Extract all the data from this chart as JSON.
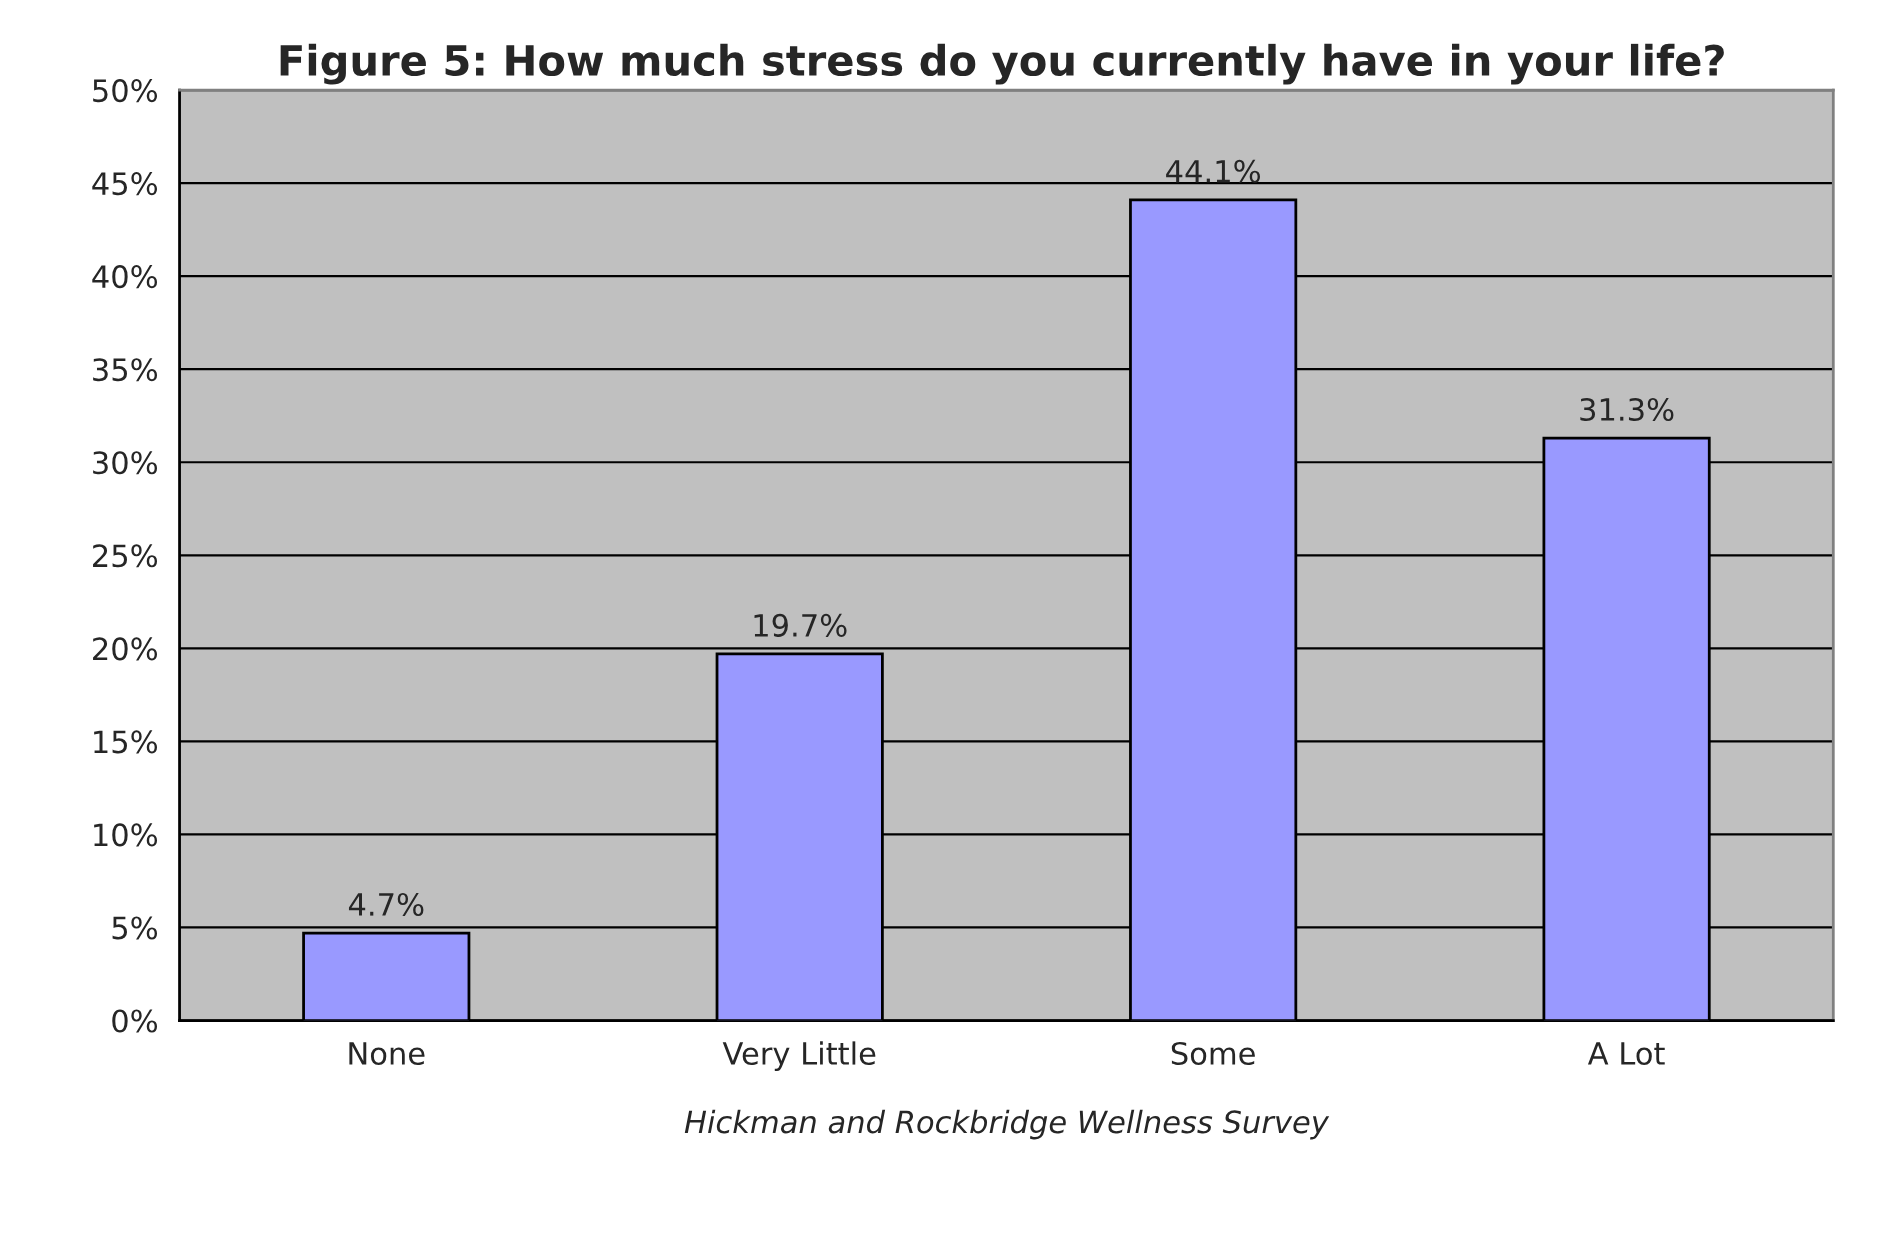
{
  "chart_data": {
    "type": "bar",
    "title": "Figure 5: How much stress do you currently have in your life?",
    "xlabel": "Hickman and Rockbridge Wellness Survey",
    "categories": [
      "None",
      "Very Little",
      "Some",
      "A Lot"
    ],
    "values": [
      4.7,
      19.7,
      44.1,
      31.3
    ],
    "value_labels": [
      "4.7%",
      "19.7%",
      "44.1%",
      "31.3%"
    ],
    "color": "#9999ff",
    "ylim": [
      0,
      50
    ],
    "yticks": [
      {
        "value": 0,
        "label": "0%"
      },
      {
        "value": 5,
        "label": "5%"
      },
      {
        "value": 10,
        "label": "10%"
      },
      {
        "value": 15,
        "label": "15%"
      },
      {
        "value": 20,
        "label": "20%"
      },
      {
        "value": 25,
        "label": "25%"
      },
      {
        "value": 30,
        "label": "30%"
      },
      {
        "value": 35,
        "label": "35%"
      },
      {
        "value": 40,
        "label": "40%"
      },
      {
        "value": 45,
        "label": "45%"
      },
      {
        "value": 50,
        "label": "50%"
      }
    ],
    "grid": "y",
    "legend": false
  }
}
